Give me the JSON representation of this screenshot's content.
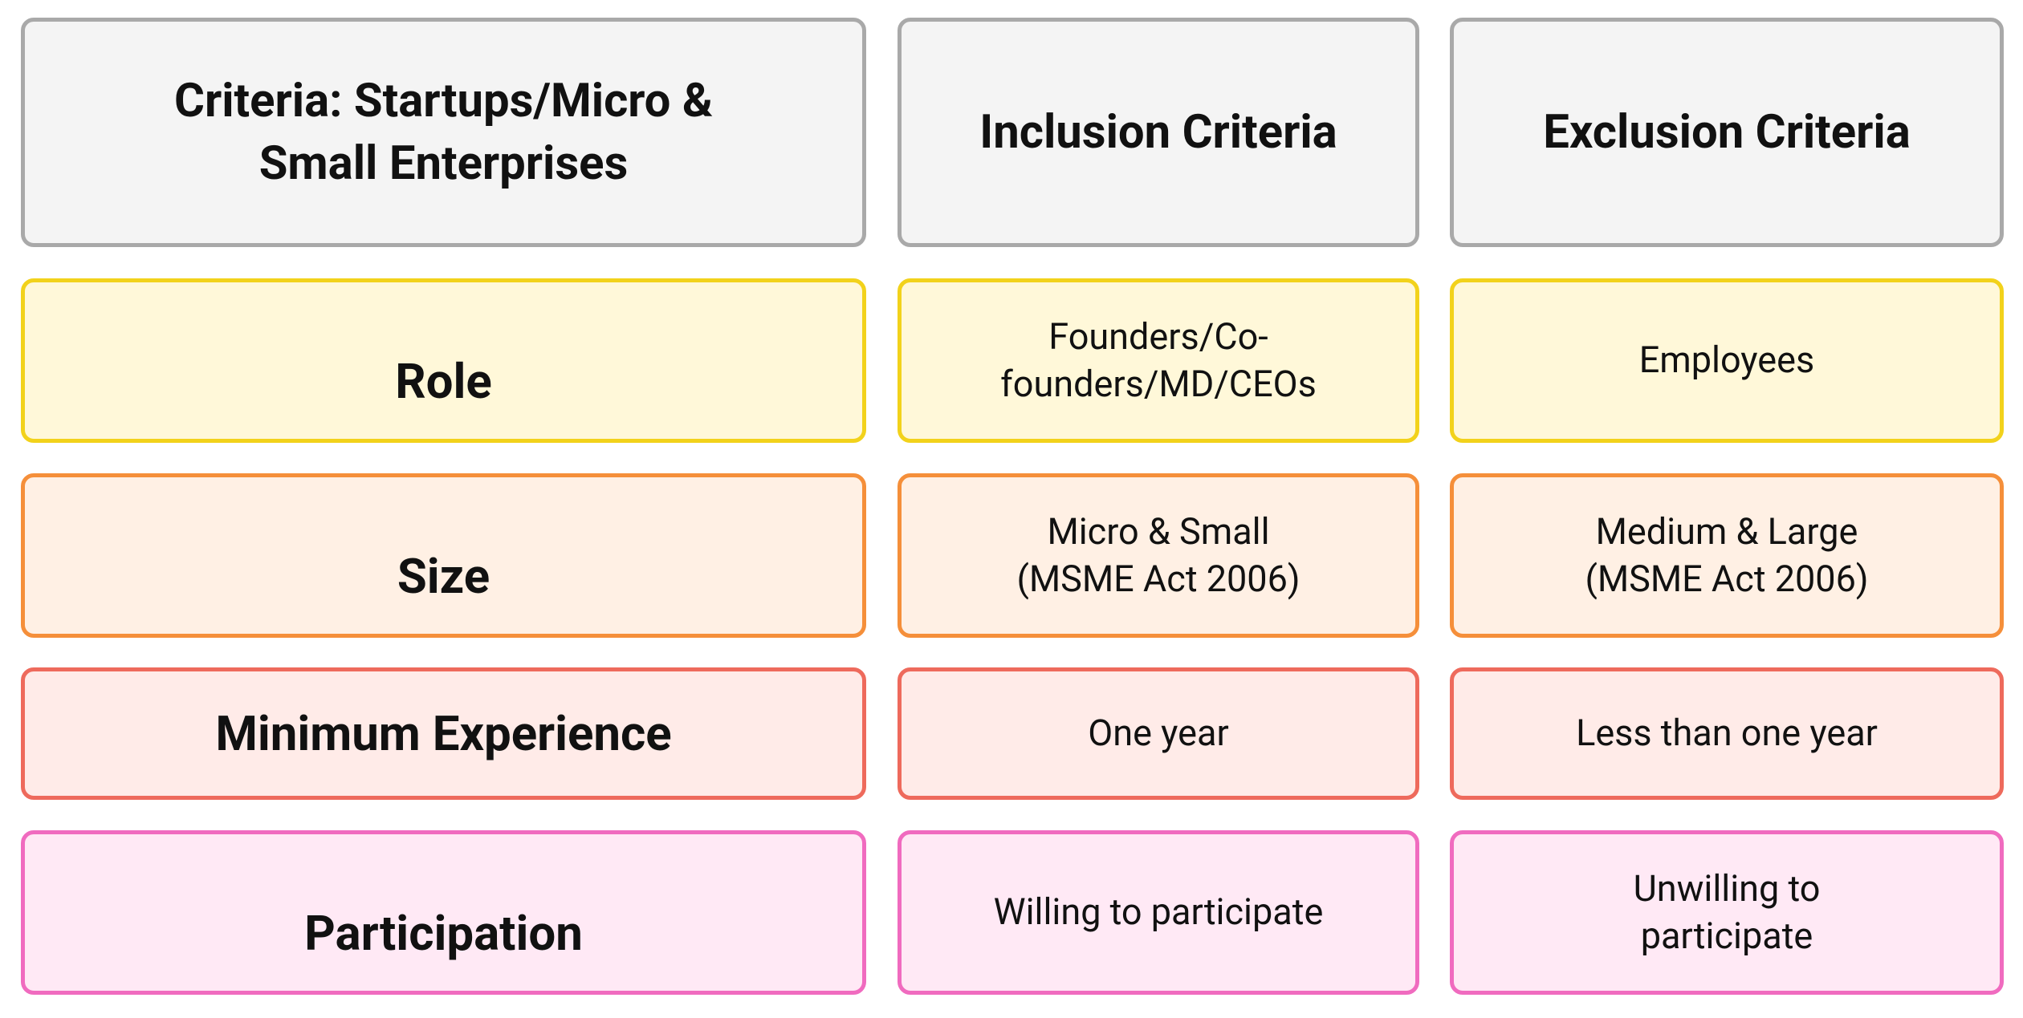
{
  "header": {
    "criteria": "Criteria: Startups/Micro & Small Enterprises",
    "inclusion": "Inclusion Criteria",
    "exclusion": "Exclusion Criteria"
  },
  "rows": [
    {
      "label": "Role",
      "inclusion": "Founders/Co-founders/MD/CEOs",
      "exclusion": "Employees"
    },
    {
      "label": "Size",
      "inclusion": "Micro & Small\n(MSME Act 2006)",
      "exclusion": "Medium & Large\n(MSME Act 2006)"
    },
    {
      "label": "Minimum Experience",
      "inclusion": "One year",
      "exclusion": "Less than one year"
    },
    {
      "label": "Participation",
      "inclusion": "Willing to participate",
      "exclusion": "Unwilling to\nparticipate"
    }
  ]
}
